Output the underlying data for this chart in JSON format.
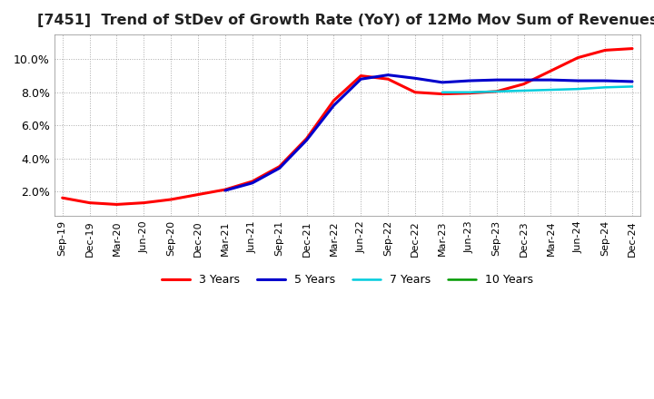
{
  "title": "[7451]  Trend of StDev of Growth Rate (YoY) of 12Mo Mov Sum of Revenues",
  "title_fontsize": 11.5,
  "background_color": "#ffffff",
  "grid_color": "#aaaaaa",
  "ylim": [
    0.5,
    11.5
  ],
  "yticks": [
    2.0,
    4.0,
    6.0,
    8.0,
    10.0
  ],
  "legend_labels": [
    "3 Years",
    "5 Years",
    "7 Years",
    "10 Years"
  ],
  "legend_colors": [
    "#ff0000",
    "#0000cc",
    "#00ccdd",
    "#009900"
  ],
  "x_labels": [
    "Sep-19",
    "Dec-19",
    "Mar-20",
    "Jun-20",
    "Sep-20",
    "Dec-20",
    "Mar-21",
    "Jun-21",
    "Sep-21",
    "Dec-21",
    "Mar-22",
    "Jun-22",
    "Sep-22",
    "Dec-22",
    "Mar-23",
    "Jun-23",
    "Sep-23",
    "Dec-23",
    "Mar-24",
    "Jun-24",
    "Sep-24",
    "Dec-24"
  ],
  "series_3y": [
    1.6,
    1.3,
    1.2,
    1.3,
    1.5,
    1.8,
    2.1,
    2.6,
    3.5,
    5.2,
    7.5,
    9.0,
    8.8,
    8.0,
    7.9,
    7.95,
    8.05,
    8.5,
    9.3,
    10.1,
    10.55,
    10.65
  ],
  "series_5y": [
    null,
    null,
    null,
    null,
    null,
    null,
    2.05,
    2.5,
    3.4,
    5.1,
    7.2,
    8.8,
    9.05,
    8.85,
    8.6,
    8.7,
    8.75,
    8.75,
    8.75,
    8.7,
    8.7,
    8.65
  ],
  "series_7y": [
    null,
    null,
    null,
    null,
    null,
    null,
    null,
    null,
    null,
    null,
    null,
    null,
    null,
    null,
    8.0,
    8.0,
    8.05,
    8.1,
    8.15,
    8.2,
    8.3,
    8.35
  ],
  "series_10y": [
    null,
    null,
    null,
    null,
    null,
    null,
    null,
    null,
    null,
    null,
    null,
    null,
    null,
    null,
    null,
    null,
    null,
    null,
    null,
    null,
    null,
    null
  ]
}
